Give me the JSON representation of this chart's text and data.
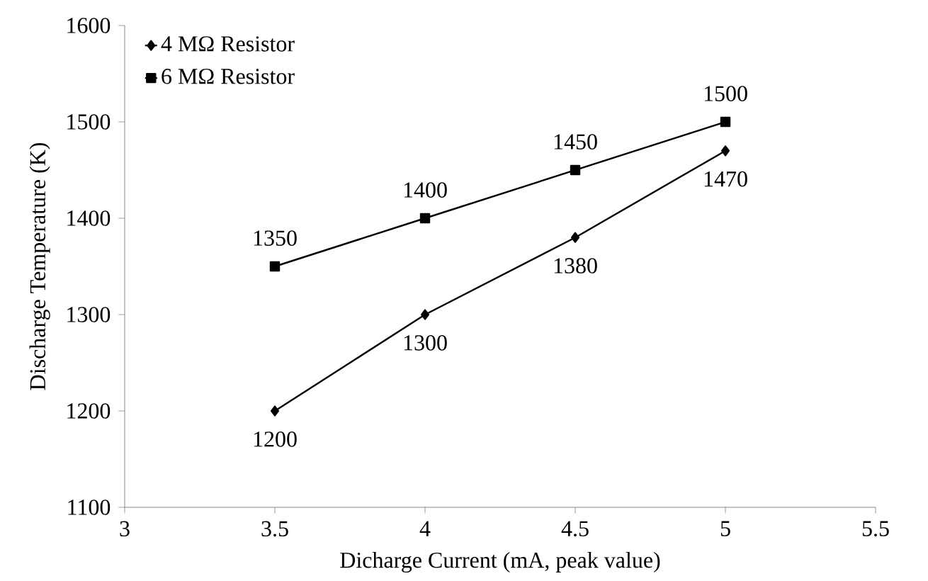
{
  "chart_data": {
    "type": "line",
    "xlabel": "Dicharge Current (mA, peak value)",
    "ylabel": "Discharge Temperature (K)",
    "x": [
      3.5,
      4,
      4.5,
      5
    ],
    "series": [
      {
        "name": "4 MΩ Resistor",
        "color": "#000000",
        "marker": "diamond",
        "values": [
          1200,
          1300,
          1380,
          1470
        ]
      },
      {
        "name": "6 MΩ Resistor",
        "color": "#000000",
        "marker": "square",
        "values": [
          1350,
          1400,
          1450,
          1500
        ]
      }
    ],
    "xlim": [
      3,
      5.5
    ],
    "xticks": [
      3,
      3.5,
      4,
      4.5,
      5,
      5.5
    ],
    "ylim": [
      1100,
      1600
    ],
    "yticks": [
      1100,
      1200,
      1300,
      1400,
      1500,
      1600
    ],
    "grid": false,
    "legend": "top left",
    "data_labels": true,
    "line_style": "solid"
  }
}
